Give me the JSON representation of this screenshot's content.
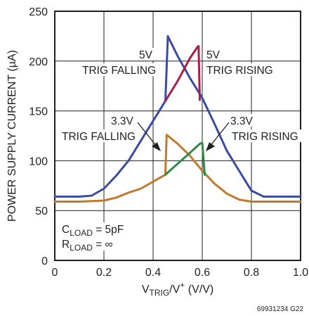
{
  "chart_data": {
    "type": "line",
    "xlabel": {
      "main": "V",
      "sub": "TRIG",
      "mid": "/V",
      "sup": "+",
      "tail": " (V/V)"
    },
    "ylabel": "POWER SUPPLY CURRENT (µA)",
    "xlim": [
      0,
      1.0
    ],
    "ylim": [
      0,
      250
    ],
    "x_ticks": [
      0,
      0.2,
      0.4,
      0.6,
      0.8,
      1.0
    ],
    "x_tick_labels": [
      "0",
      "0.2",
      "0.4",
      "0.6",
      "0.8",
      "1.0"
    ],
    "y_ticks": [
      0,
      50,
      100,
      150,
      200,
      250
    ],
    "y_tick_labels": [
      "0",
      "50",
      "100",
      "150",
      "200",
      "250"
    ],
    "grid": true,
    "series": [
      {
        "name": "5V TRIG FALLING",
        "color": "#3a4ba3",
        "x": [
          0,
          0.1,
          0.15,
          0.2,
          0.25,
          0.3,
          0.35,
          0.4,
          0.43,
          0.45,
          0.46,
          0.5,
          0.55,
          0.6,
          0.65,
          0.7,
          0.75,
          0.8,
          0.85,
          1.0
        ],
        "y": [
          64,
          64,
          65,
          72,
          85,
          100,
          120,
          140,
          152,
          160,
          225,
          205,
          183,
          163,
          137,
          110,
          90,
          70,
          64,
          64
        ]
      },
      {
        "name": "5V TRIG RISING",
        "color": "#a81e46",
        "x": [
          0.45,
          0.5,
          0.55,
          0.58,
          0.585,
          0.59
        ],
        "y": [
          160,
          180,
          203,
          214,
          215,
          161
        ]
      },
      {
        "name": "3.3V TRIG FALLING",
        "color": "#c17a2b",
        "x": [
          0,
          0.1,
          0.2,
          0.25,
          0.3,
          0.35,
          0.4,
          0.45,
          0.455,
          0.5,
          0.55,
          0.6,
          0.65,
          0.7,
          0.75,
          0.8,
          1.0
        ],
        "y": [
          59,
          59,
          60,
          63,
          68,
          72,
          79,
          86,
          126,
          117,
          105,
          90,
          77,
          67,
          61,
          59,
          59
        ]
      },
      {
        "name": "3.3V TRIG RISING",
        "color": "#2e8a45",
        "x": [
          0.45,
          0.5,
          0.55,
          0.59,
          0.6,
          0.61
        ],
        "y": [
          86,
          97,
          108,
          117,
          118,
          86
        ]
      }
    ],
    "annotations": [
      {
        "lines": [
          "5V"
        ]
      },
      {
        "lines": [
          "TRIG FALLING"
        ]
      },
      {
        "lines": [
          "5V"
        ]
      },
      {
        "lines": [
          "TRIG RISING"
        ]
      },
      {
        "lines": [
          "3.3V"
        ]
      },
      {
        "lines": [
          "TRIG FALLING"
        ]
      },
      {
        "lines": [
          "3.3V"
        ]
      },
      {
        "lines": [
          "TRIG RISING"
        ]
      }
    ],
    "conditions": [
      {
        "main": "C",
        "sub": "LOAD",
        "tail": " = 5pF"
      },
      {
        "main": "R",
        "sub": "LOAD",
        "tail": " = ∞"
      }
    ],
    "figure_id": "69931234 G22"
  }
}
